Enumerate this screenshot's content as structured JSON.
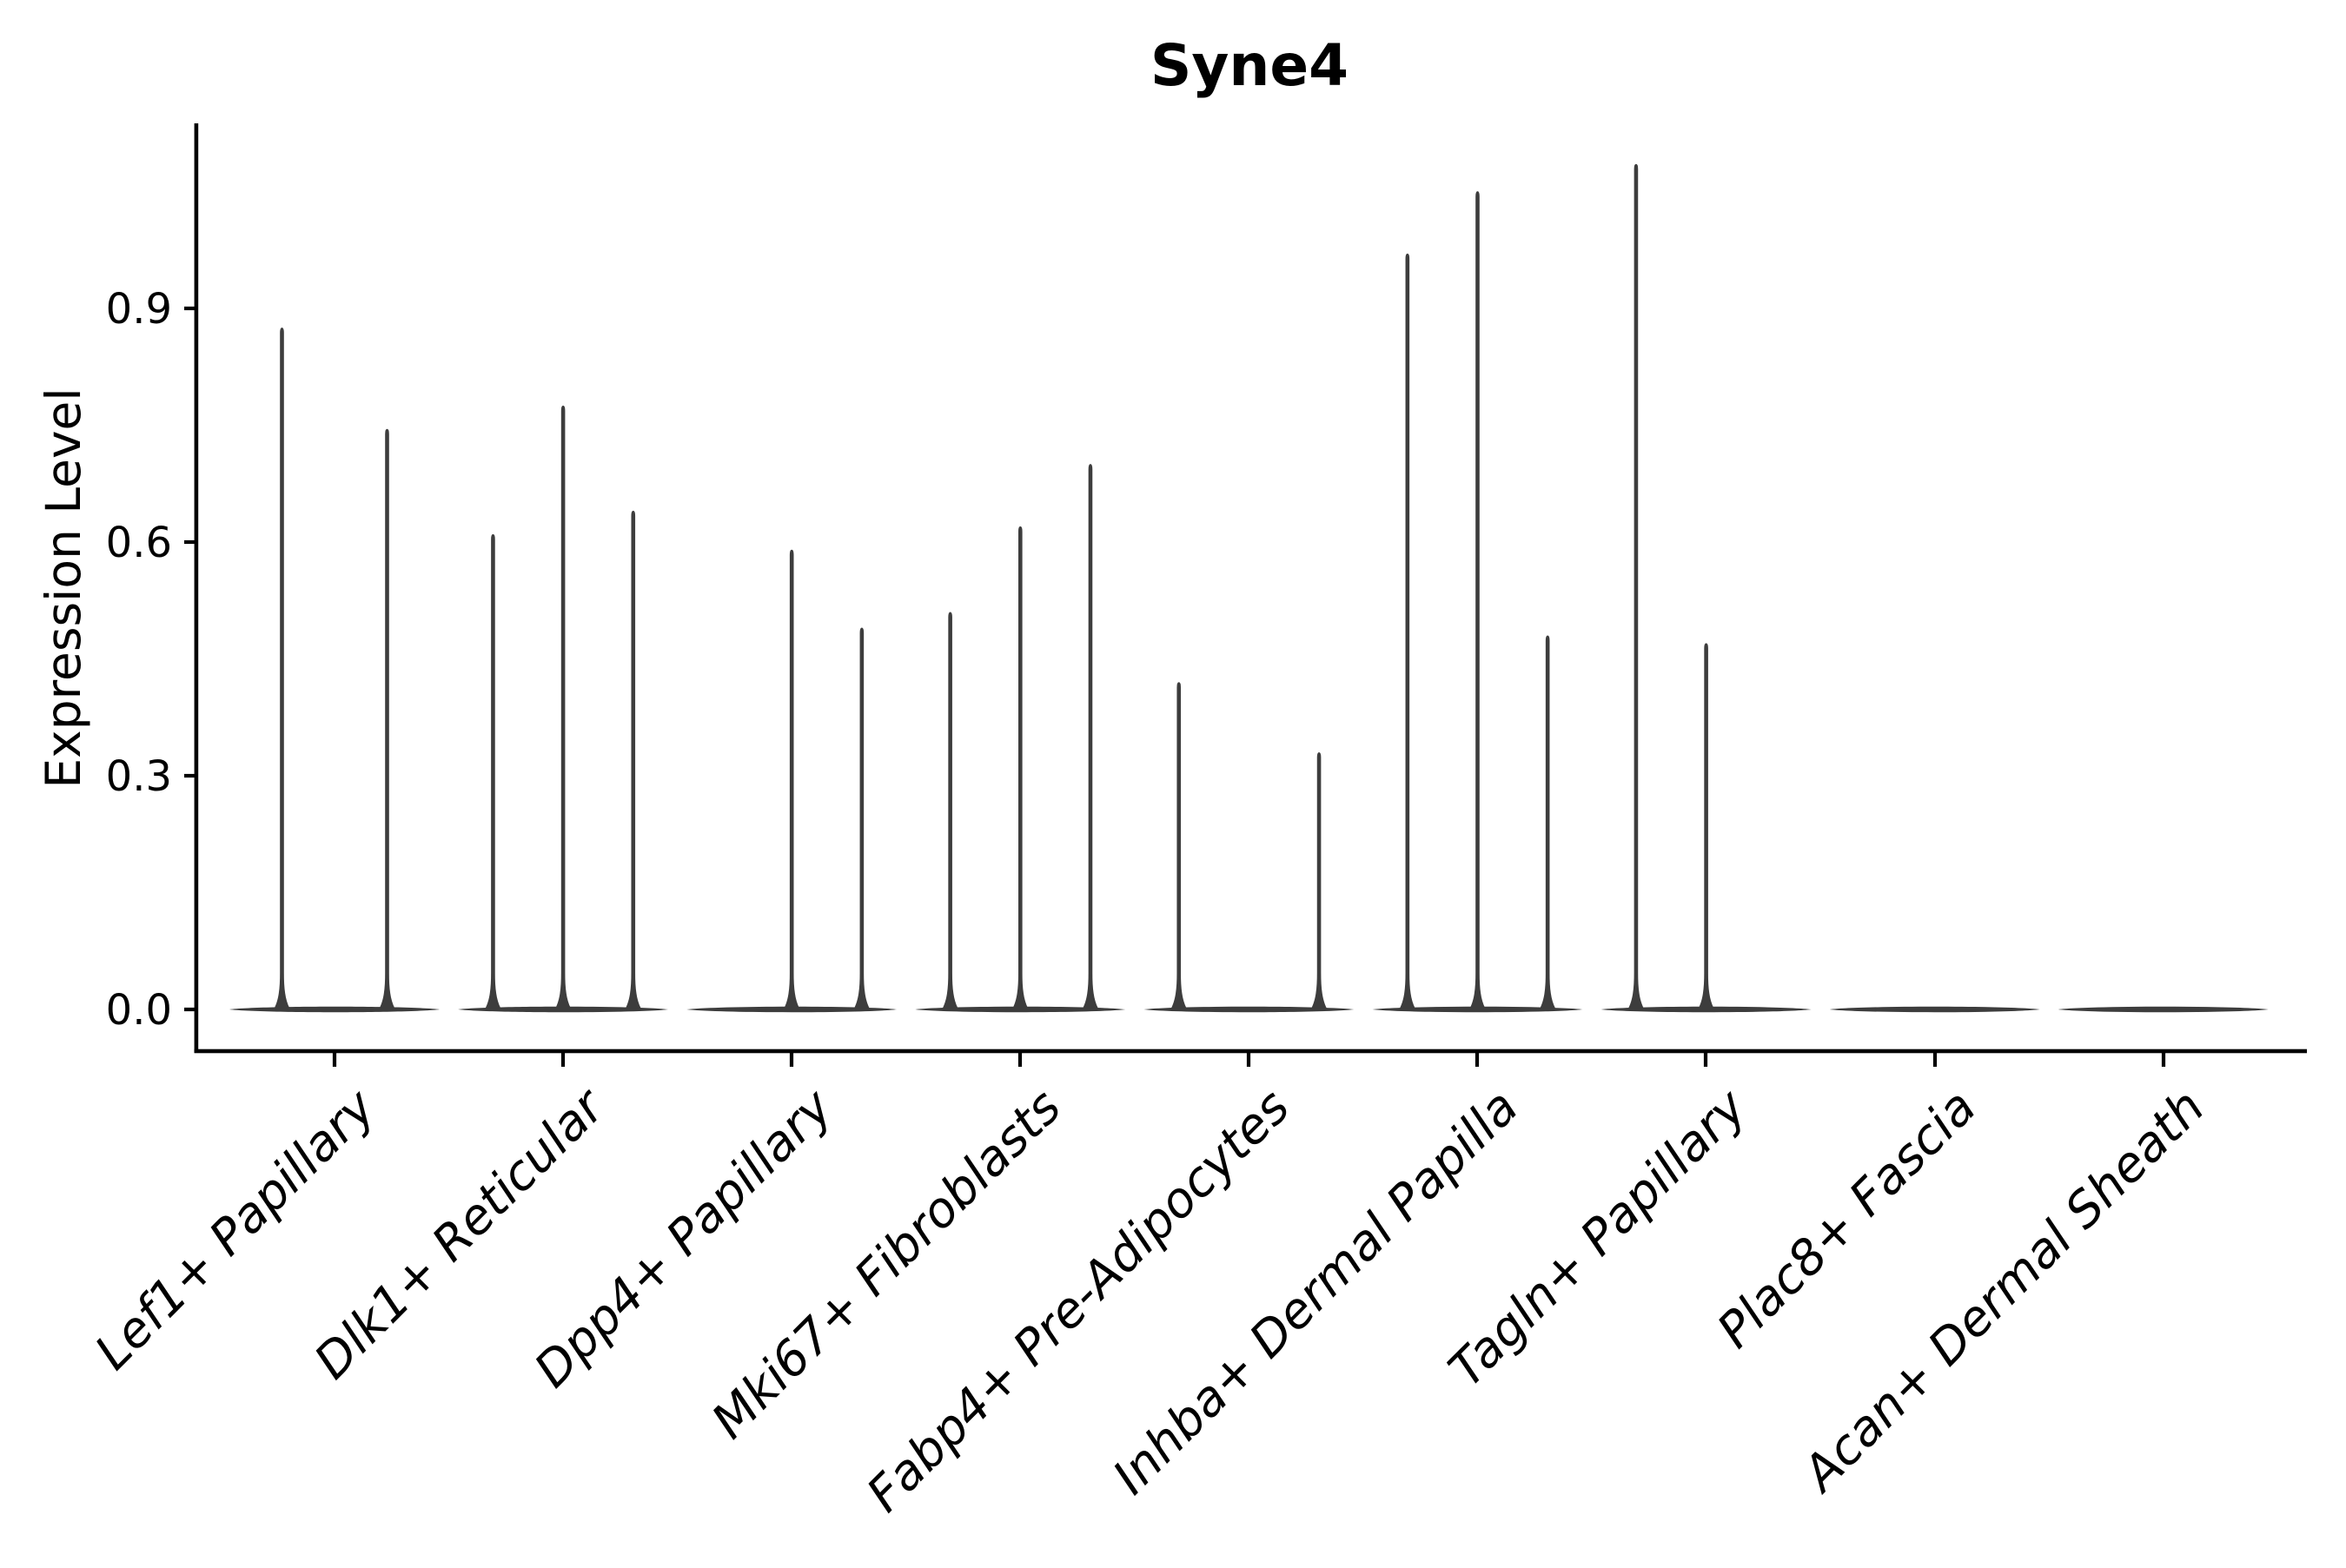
{
  "chart_data": {
    "type": "violin",
    "title": "Syne4",
    "ylabel": "Expression Level",
    "xlabel": "",
    "yticks": [
      0.0,
      0.3,
      0.6,
      0.9
    ],
    "ytick_labels": [
      "0.0",
      "0.3",
      "0.6",
      "0.9"
    ],
    "ylim": [
      -0.05,
      1.14
    ],
    "legend": "none",
    "grid": false,
    "categories": [
      "Lef1+ Papillary",
      "Dlk1+ Reticular",
      "Dpp4+ Papillary",
      "Mki67+ Fibroblasts",
      "Fabp4+ Pre-Adipocytes",
      "Inhba+ Dermal Papilla",
      "Tagln+ Papillary",
      "Plac8+ Fascia",
      "Acan+ Dermal Sheath"
    ],
    "violins": [
      {
        "category": "Lef1+ Papillary",
        "spike_maxima": [
          0.875,
          0.745
        ]
      },
      {
        "category": "Dlk1+ Reticular",
        "spike_maxima": [
          0.61,
          0.775,
          0.64
        ]
      },
      {
        "category": "Dpp4+ Papillary",
        "spike_maxima": [
          0,
          0.59,
          0.49
        ]
      },
      {
        "category": "Mki67+ Fibroblasts",
        "spike_maxima": [
          0.51,
          0.62,
          0.7
        ]
      },
      {
        "category": "Fabp4+ Pre-Adipocytes",
        "spike_maxima": [
          0.42,
          0,
          0.33
        ]
      },
      {
        "category": "Inhba+ Dermal Papilla",
        "spike_maxima": [
          0.97,
          1.05,
          0.48
        ]
      },
      {
        "category": "Tagln+ Papillary",
        "spike_maxima": [
          1.085,
          0.47,
          0
        ]
      },
      {
        "category": "Plac8+ Fascia",
        "spike_maxima": [
          0,
          0,
          0
        ]
      },
      {
        "category": "Acan+ Dermal Sheath",
        "spike_maxima": [
          0,
          0,
          0
        ]
      }
    ],
    "colors": {
      "violin": "#3d3d3d",
      "axis": "#000000",
      "background": "#ffffff"
    }
  }
}
